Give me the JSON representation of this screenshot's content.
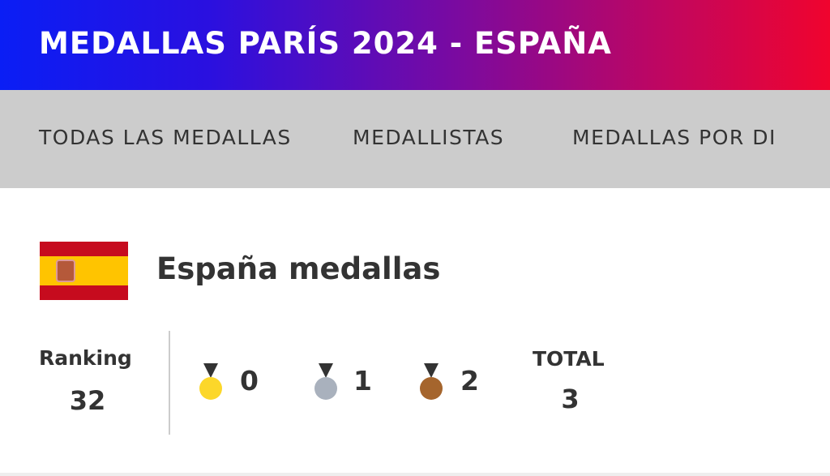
{
  "header": {
    "title": "MEDALLAS PARÍS 2024 - ESPAÑA"
  },
  "tabs": [
    {
      "label": "TODAS LAS MEDALLAS"
    },
    {
      "label": "MEDALLISTAS"
    },
    {
      "label": "MEDALLAS POR DI"
    }
  ],
  "country": {
    "name": "España medallas",
    "flag": "spain-flag"
  },
  "stats": {
    "ranking_label": "Ranking",
    "ranking": "32",
    "medals": [
      {
        "type": "gold",
        "count": "0",
        "color": "#fcd72a"
      },
      {
        "type": "silver",
        "count": "1",
        "color": "#a9b1bd"
      },
      {
        "type": "bronze",
        "count": "2",
        "color": "#a5652d"
      }
    ],
    "total_label": "TOTAL",
    "total": "3"
  }
}
